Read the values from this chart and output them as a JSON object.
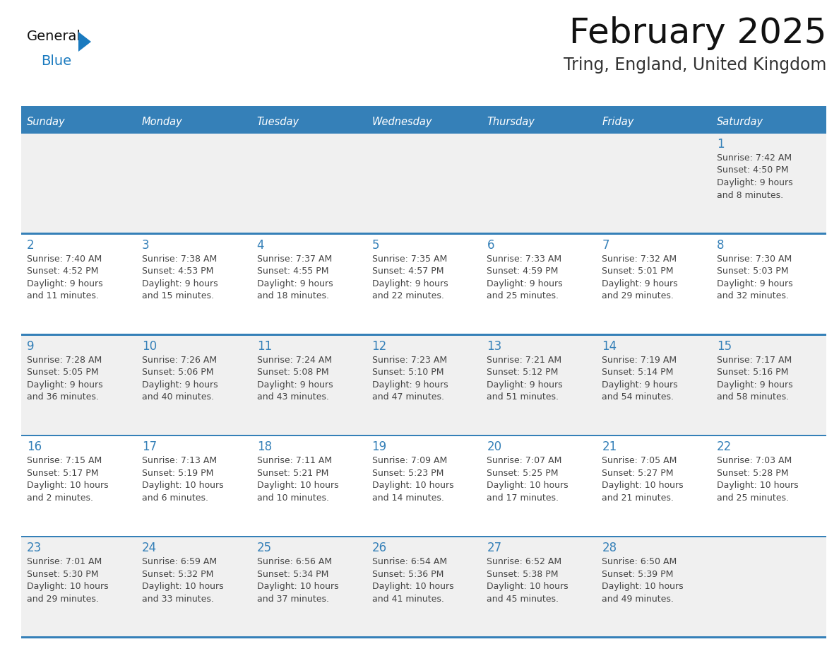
{
  "title": "February 2025",
  "subtitle": "Tring, England, United Kingdom",
  "days_of_week": [
    "Sunday",
    "Monday",
    "Tuesday",
    "Wednesday",
    "Thursday",
    "Friday",
    "Saturday"
  ],
  "header_bg": "#3580b8",
  "header_text_color": "#FFFFFF",
  "row_bg_light": "#f0f0f0",
  "row_bg_white": "#FFFFFF",
  "border_color": "#3580b8",
  "day_number_color": "#3580b8",
  "cell_text_color": "#444444",
  "title_color": "#111111",
  "subtitle_color": "#333333",
  "logo_black": "#111111",
  "logo_blue": "#1a7abf",
  "triangle_color": "#1a7abf",
  "calendar": [
    [
      null,
      null,
      null,
      null,
      null,
      null,
      {
        "day": 1,
        "sunrise": "7:42 AM",
        "sunset": "4:50 PM",
        "daylight": "9 hours",
        "daylight2": "and 8 minutes."
      }
    ],
    [
      {
        "day": 2,
        "sunrise": "7:40 AM",
        "sunset": "4:52 PM",
        "daylight": "9 hours",
        "daylight2": "and 11 minutes."
      },
      {
        "day": 3,
        "sunrise": "7:38 AM",
        "sunset": "4:53 PM",
        "daylight": "9 hours",
        "daylight2": "and 15 minutes."
      },
      {
        "day": 4,
        "sunrise": "7:37 AM",
        "sunset": "4:55 PM",
        "daylight": "9 hours",
        "daylight2": "and 18 minutes."
      },
      {
        "day": 5,
        "sunrise": "7:35 AM",
        "sunset": "4:57 PM",
        "daylight": "9 hours",
        "daylight2": "and 22 minutes."
      },
      {
        "day": 6,
        "sunrise": "7:33 AM",
        "sunset": "4:59 PM",
        "daylight": "9 hours",
        "daylight2": "and 25 minutes."
      },
      {
        "day": 7,
        "sunrise": "7:32 AM",
        "sunset": "5:01 PM",
        "daylight": "9 hours",
        "daylight2": "and 29 minutes."
      },
      {
        "day": 8,
        "sunrise": "7:30 AM",
        "sunset": "5:03 PM",
        "daylight": "9 hours",
        "daylight2": "and 32 minutes."
      }
    ],
    [
      {
        "day": 9,
        "sunrise": "7:28 AM",
        "sunset": "5:05 PM",
        "daylight": "9 hours",
        "daylight2": "and 36 minutes."
      },
      {
        "day": 10,
        "sunrise": "7:26 AM",
        "sunset": "5:06 PM",
        "daylight": "9 hours",
        "daylight2": "and 40 minutes."
      },
      {
        "day": 11,
        "sunrise": "7:24 AM",
        "sunset": "5:08 PM",
        "daylight": "9 hours",
        "daylight2": "and 43 minutes."
      },
      {
        "day": 12,
        "sunrise": "7:23 AM",
        "sunset": "5:10 PM",
        "daylight": "9 hours",
        "daylight2": "and 47 minutes."
      },
      {
        "day": 13,
        "sunrise": "7:21 AM",
        "sunset": "5:12 PM",
        "daylight": "9 hours",
        "daylight2": "and 51 minutes."
      },
      {
        "day": 14,
        "sunrise": "7:19 AM",
        "sunset": "5:14 PM",
        "daylight": "9 hours",
        "daylight2": "and 54 minutes."
      },
      {
        "day": 15,
        "sunrise": "7:17 AM",
        "sunset": "5:16 PM",
        "daylight": "9 hours",
        "daylight2": "and 58 minutes."
      }
    ],
    [
      {
        "day": 16,
        "sunrise": "7:15 AM",
        "sunset": "5:17 PM",
        "daylight": "10 hours",
        "daylight2": "and 2 minutes."
      },
      {
        "day": 17,
        "sunrise": "7:13 AM",
        "sunset": "5:19 PM",
        "daylight": "10 hours",
        "daylight2": "and 6 minutes."
      },
      {
        "day": 18,
        "sunrise": "7:11 AM",
        "sunset": "5:21 PM",
        "daylight": "10 hours",
        "daylight2": "and 10 minutes."
      },
      {
        "day": 19,
        "sunrise": "7:09 AM",
        "sunset": "5:23 PM",
        "daylight": "10 hours",
        "daylight2": "and 14 minutes."
      },
      {
        "day": 20,
        "sunrise": "7:07 AM",
        "sunset": "5:25 PM",
        "daylight": "10 hours",
        "daylight2": "and 17 minutes."
      },
      {
        "day": 21,
        "sunrise": "7:05 AM",
        "sunset": "5:27 PM",
        "daylight": "10 hours",
        "daylight2": "and 21 minutes."
      },
      {
        "day": 22,
        "sunrise": "7:03 AM",
        "sunset": "5:28 PM",
        "daylight": "10 hours",
        "daylight2": "and 25 minutes."
      }
    ],
    [
      {
        "day": 23,
        "sunrise": "7:01 AM",
        "sunset": "5:30 PM",
        "daylight": "10 hours",
        "daylight2": "and 29 minutes."
      },
      {
        "day": 24,
        "sunrise": "6:59 AM",
        "sunset": "5:32 PM",
        "daylight": "10 hours",
        "daylight2": "and 33 minutes."
      },
      {
        "day": 25,
        "sunrise": "6:56 AM",
        "sunset": "5:34 PM",
        "daylight": "10 hours",
        "daylight2": "and 37 minutes."
      },
      {
        "day": 26,
        "sunrise": "6:54 AM",
        "sunset": "5:36 PM",
        "daylight": "10 hours",
        "daylight2": "and 41 minutes."
      },
      {
        "day": 27,
        "sunrise": "6:52 AM",
        "sunset": "5:38 PM",
        "daylight": "10 hours",
        "daylight2": "and 45 minutes."
      },
      {
        "day": 28,
        "sunrise": "6:50 AM",
        "sunset": "5:39 PM",
        "daylight": "10 hours",
        "daylight2": "and 49 minutes."
      },
      null
    ]
  ]
}
